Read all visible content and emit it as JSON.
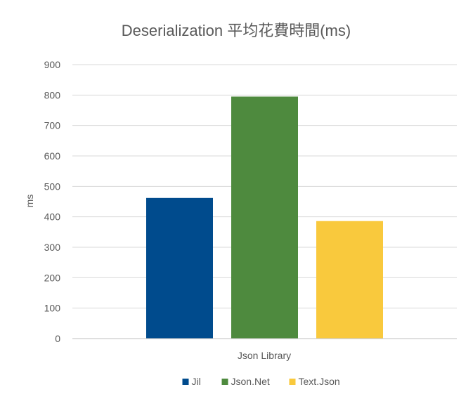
{
  "chart_data": {
    "type": "bar",
    "title": "Deserialization 平均花費時間(ms)",
    "xlabel": "Json Library",
    "ylabel": "ms",
    "ylim": [
      0,
      900
    ],
    "yticks": [
      0,
      100,
      200,
      300,
      400,
      500,
      600,
      700,
      800,
      900
    ],
    "grid": true,
    "legend_position": "bottom",
    "categories": [
      "Json Library"
    ],
    "series": [
      {
        "name": "Jil",
        "values": [
          462
        ],
        "color": "#004B8D"
      },
      {
        "name": "Json.Net",
        "values": [
          795
        ],
        "color": "#4E8A3E"
      },
      {
        "name": "Text.Json",
        "values": [
          386
        ],
        "color": "#F9C93D"
      }
    ]
  }
}
